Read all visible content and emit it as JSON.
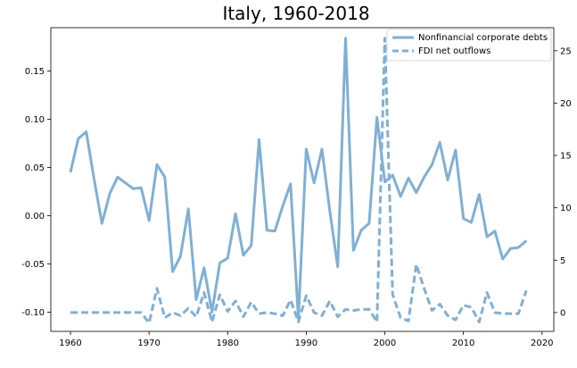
{
  "chart_data": {
    "type": "line",
    "title": "Italy, 1960-2018",
    "xlabel": "",
    "ylabel_left": "",
    "ylabel_right": "",
    "xlim": [
      1957.5,
      2021.5
    ],
    "ylim_left": [
      -0.12,
      0.195
    ],
    "ylim_right": [
      -1.8,
      27.2
    ],
    "xticks": [
      1960,
      1970,
      1980,
      1990,
      2000,
      2010,
      2020
    ],
    "yticks_left": [
      -0.1,
      -0.05,
      0.0,
      0.05,
      0.1,
      0.15
    ],
    "yticks_right": [
      0,
      5,
      10,
      15,
      20,
      25
    ],
    "grid": false,
    "legend_position": "top-right",
    "color": "#7fb0d5",
    "series": [
      {
        "name": "Nonfinancial corporate debts",
        "axis": "left",
        "style": "solid",
        "x": [
          1960,
          1961,
          1962,
          1963,
          1964,
          1965,
          1966,
          1967,
          1968,
          1969,
          1970,
          1971,
          1972,
          1973,
          1974,
          1975,
          1976,
          1977,
          1978,
          1979,
          1980,
          1981,
          1982,
          1983,
          1984,
          1985,
          1986,
          1987,
          1988,
          1989,
          1990,
          1991,
          1992,
          1993,
          1994,
          1995,
          1996,
          1997,
          1998,
          1999,
          2000,
          2001,
          2002,
          2003,
          2004,
          2005,
          2006,
          2007,
          2008,
          2009,
          2010,
          2011,
          2012,
          2013,
          2014,
          2015,
          2016,
          2017,
          2018
        ],
        "values": [
          0.045,
          0.08,
          0.087,
          0.038,
          -0.008,
          0.023,
          0.04,
          0.034,
          0.028,
          0.029,
          -0.005,
          0.053,
          0.04,
          -0.058,
          -0.042,
          0.007,
          -0.087,
          -0.054,
          -0.1,
          -0.049,
          -0.044,
          0.002,
          -0.041,
          -0.031,
          0.079,
          -0.015,
          -0.016,
          0.01,
          0.033,
          -0.107,
          0.069,
          0.034,
          0.069,
          0.005,
          -0.053,
          0.184,
          -0.036,
          -0.015,
          -0.008,
          0.102,
          0.035,
          0.042,
          0.02,
          0.039,
          0.024,
          0.04,
          0.053,
          0.076,
          0.037,
          0.068,
          -0.003,
          -0.007,
          0.022,
          -0.022,
          -0.016,
          -0.045,
          -0.034,
          -0.033,
          -0.026
        ]
      },
      {
        "name": "FDI net outflows",
        "axis": "right",
        "style": "dashed",
        "x": [
          1960,
          1961,
          1962,
          1963,
          1964,
          1965,
          1966,
          1967,
          1968,
          1969,
          1970,
          1971,
          1972,
          1973,
          1974,
          1975,
          1976,
          1977,
          1978,
          1979,
          1980,
          1981,
          1982,
          1983,
          1984,
          1985,
          1986,
          1987,
          1988,
          1989,
          1990,
          1991,
          1992,
          1993,
          1994,
          1995,
          1996,
          1997,
          1998,
          1999,
          2000,
          2001,
          2002,
          2003,
          2004,
          2005,
          2006,
          2007,
          2008,
          2009,
          2010,
          2011,
          2012,
          2013,
          2014,
          2015,
          2016,
          2017,
          2018
        ],
        "values": [
          0,
          0,
          0,
          0,
          0,
          0,
          0,
          0,
          0,
          0,
          -1.0,
          2.3,
          -0.5,
          0,
          -0.3,
          0.4,
          -0.4,
          1.9,
          -0.9,
          1.7,
          0.1,
          1.1,
          -0.4,
          1.0,
          -0.1,
          0,
          -0.1,
          -0.3,
          1.2,
          -0.9,
          1.6,
          0,
          -0.3,
          1.1,
          -0.4,
          0.3,
          0.2,
          0.3,
          0.3,
          -0.9,
          26.2,
          1.7,
          -0.5,
          -0.8,
          4.6,
          2.3,
          0.2,
          0.8,
          -0.3,
          -0.7,
          0.7,
          0.5,
          -0.9,
          1.9,
          0,
          -0.1,
          -0.1,
          -0.1,
          2.1
        ]
      }
    ]
  }
}
